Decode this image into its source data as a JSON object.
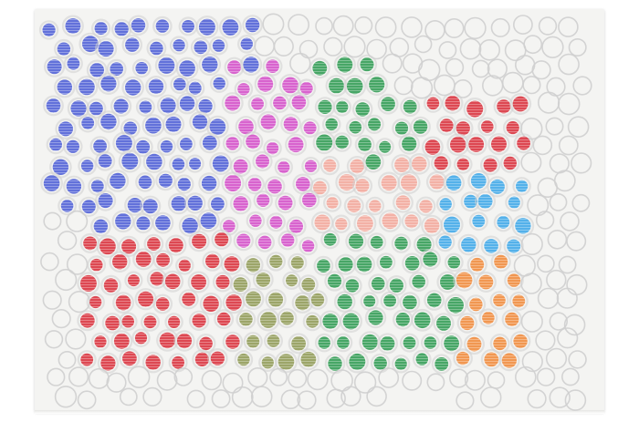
{
  "photo": {
    "subject": "hand-drawn-dot-pattern-sheet",
    "colors": {
      "background": "#ffffff",
      "paper": "#f4f4f2",
      "outline": "#cfcfcf",
      "blue": "#4d5fd6",
      "pink": "#d44fc8",
      "green": "#2f9b52",
      "red": "#d9303b",
      "olive": "#8f9a55",
      "peach": "#f2a79b",
      "sky": "#3da7e8",
      "orange": "#f08a3a"
    },
    "regions": [
      {
        "name": "blue",
        "count_estimate": 70
      },
      {
        "name": "pink",
        "count_estimate": 40
      },
      {
        "name": "green",
        "count_estimate": 45
      },
      {
        "name": "red",
        "count_estimate": 60
      },
      {
        "name": "olive",
        "count_estimate": 35
      },
      {
        "name": "peach",
        "count_estimate": 20
      },
      {
        "name": "sky",
        "count_estimate": 15
      },
      {
        "name": "orange",
        "count_estimate": 10
      },
      {
        "name": "outline-only",
        "count_estimate": 120
      }
    ]
  }
}
